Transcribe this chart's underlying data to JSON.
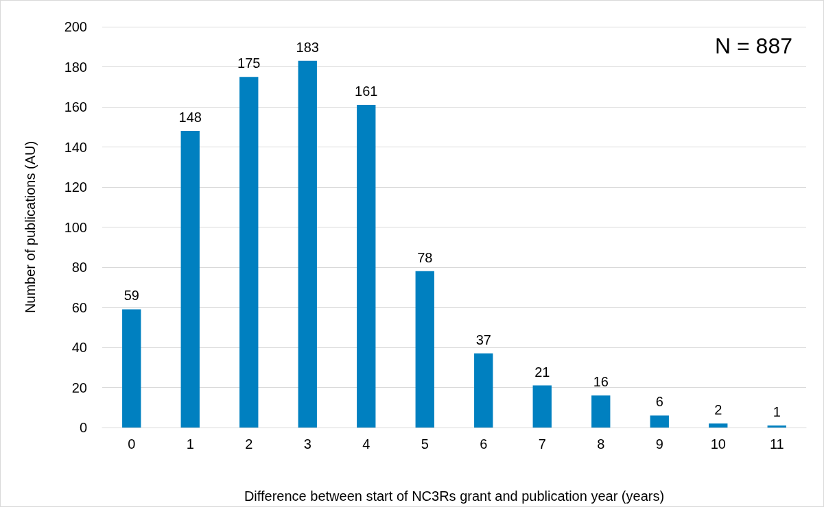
{
  "chart_data": {
    "type": "bar",
    "xlabel": "Difference between start of NC3Rs grant and publication year (years)",
    "ylabel": "Number of publications (AU)",
    "categories": [
      "0",
      "1",
      "2",
      "3",
      "4",
      "5",
      "6",
      "7",
      "8",
      "9",
      "10",
      "11"
    ],
    "values": [
      59,
      148,
      175,
      183,
      161,
      78,
      37,
      21,
      16,
      6,
      2,
      1
    ],
    "color": "#0080c0",
    "ylim": [
      0,
      200
    ],
    "yticks": [
      0,
      20,
      40,
      60,
      80,
      100,
      120,
      140,
      160,
      180,
      200
    ],
    "grid": "y",
    "data_labels": true,
    "annotations": [
      "N = 887"
    ]
  }
}
